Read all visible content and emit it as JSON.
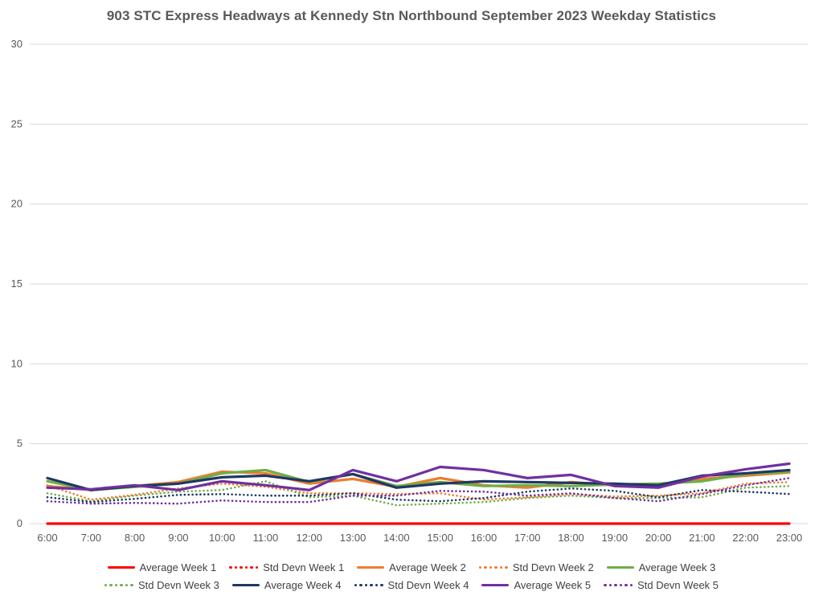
{
  "chart_data": {
    "type": "line",
    "title": "903 STC Express Headways at Kennedy Stn Northbound September 2023 Weekday Statistics",
    "xlabel": "",
    "ylabel": "",
    "ylim": [
      0,
      30
    ],
    "ytick_step": 5,
    "yticks": [
      0,
      5,
      10,
      15,
      20,
      25,
      30
    ],
    "grid": "horizontal",
    "legend_position": "bottom",
    "legend_rows": [
      5,
      5
    ],
    "axis_label_color": "#595959",
    "gridline_color": "#d9d9d9",
    "x": [
      "6:00",
      "7:00",
      "8:00",
      "9:00",
      "10:00",
      "11:00",
      "12:00",
      "13:00",
      "14:00",
      "15:00",
      "16:00",
      "17:00",
      "18:00",
      "19:00",
      "20:00",
      "21:00",
      "22:00",
      "23:00"
    ],
    "series": [
      {
        "name": "Average Week 1",
        "color": "#ff0000",
        "style": "solid",
        "values": [
          0,
          0,
          0,
          0,
          0,
          0,
          0,
          0,
          0,
          0,
          0,
          0,
          0,
          0,
          0,
          0,
          0,
          0
        ]
      },
      {
        "name": "Std Devn Week 1",
        "color": "#ff0000",
        "style": "dotted",
        "values": [
          0,
          0,
          0,
          0,
          0,
          0,
          0,
          0,
          0,
          0,
          0,
          0,
          0,
          0,
          0,
          0,
          0,
          0
        ]
      },
      {
        "name": "Average Week 2",
        "color": "#ed7d31",
        "style": "solid",
        "values": [
          2.35,
          2.1,
          2.35,
          2.6,
          3.25,
          3.15,
          2.5,
          2.8,
          2.3,
          2.85,
          2.4,
          2.25,
          2.6,
          2.4,
          2.35,
          2.8,
          3.0,
          3.2
        ]
      },
      {
        "name": "Std Devn Week 2",
        "color": "#ed7d31",
        "style": "dotted",
        "values": [
          2.4,
          1.5,
          1.8,
          2.2,
          2.5,
          2.3,
          1.9,
          1.9,
          1.85,
          1.9,
          1.5,
          1.65,
          1.85,
          1.7,
          1.75,
          1.9,
          2.5,
          2.6
        ]
      },
      {
        "name": "Average Week 3",
        "color": "#70ad47",
        "style": "solid",
        "values": [
          2.65,
          2.1,
          2.3,
          2.5,
          3.15,
          3.35,
          2.6,
          3.1,
          2.35,
          2.6,
          2.35,
          2.4,
          2.35,
          2.45,
          2.5,
          2.65,
          3.1,
          3.25
        ]
      },
      {
        "name": "Std Devn Week 3",
        "color": "#70ad47",
        "style": "dotted",
        "values": [
          1.9,
          1.4,
          1.75,
          2.0,
          2.1,
          2.65,
          1.65,
          1.75,
          1.15,
          1.25,
          1.35,
          1.6,
          1.75,
          1.6,
          1.6,
          1.65,
          2.25,
          2.35
        ]
      },
      {
        "name": "Average Week 4",
        "color": "#1f3864",
        "style": "solid",
        "values": [
          2.85,
          2.1,
          2.35,
          2.5,
          2.9,
          3.0,
          2.65,
          3.1,
          2.25,
          2.5,
          2.65,
          2.6,
          2.55,
          2.5,
          2.4,
          3.0,
          3.15,
          3.35
        ]
      },
      {
        "name": "Std Devn Week 4",
        "color": "#1f3864",
        "style": "dotted",
        "values": [
          1.65,
          1.35,
          1.55,
          1.8,
          1.85,
          1.75,
          1.75,
          1.9,
          1.5,
          1.4,
          1.6,
          2.0,
          2.2,
          2.05,
          1.65,
          2.1,
          2.0,
          1.85
        ]
      },
      {
        "name": "Average Week 5",
        "color": "#7030a0",
        "style": "solid",
        "values": [
          2.25,
          2.15,
          2.4,
          2.1,
          2.65,
          2.4,
          2.1,
          3.35,
          2.65,
          3.55,
          3.35,
          2.85,
          3.05,
          2.35,
          2.25,
          2.95,
          3.4,
          3.75
        ]
      },
      {
        "name": "Std Devn Week 5",
        "color": "#7030a0",
        "style": "dotted",
        "values": [
          1.4,
          1.25,
          1.3,
          1.25,
          1.45,
          1.35,
          1.35,
          1.75,
          1.75,
          2.05,
          2.0,
          1.75,
          1.9,
          1.6,
          1.4,
          1.85,
          2.4,
          2.85
        ]
      }
    ]
  }
}
